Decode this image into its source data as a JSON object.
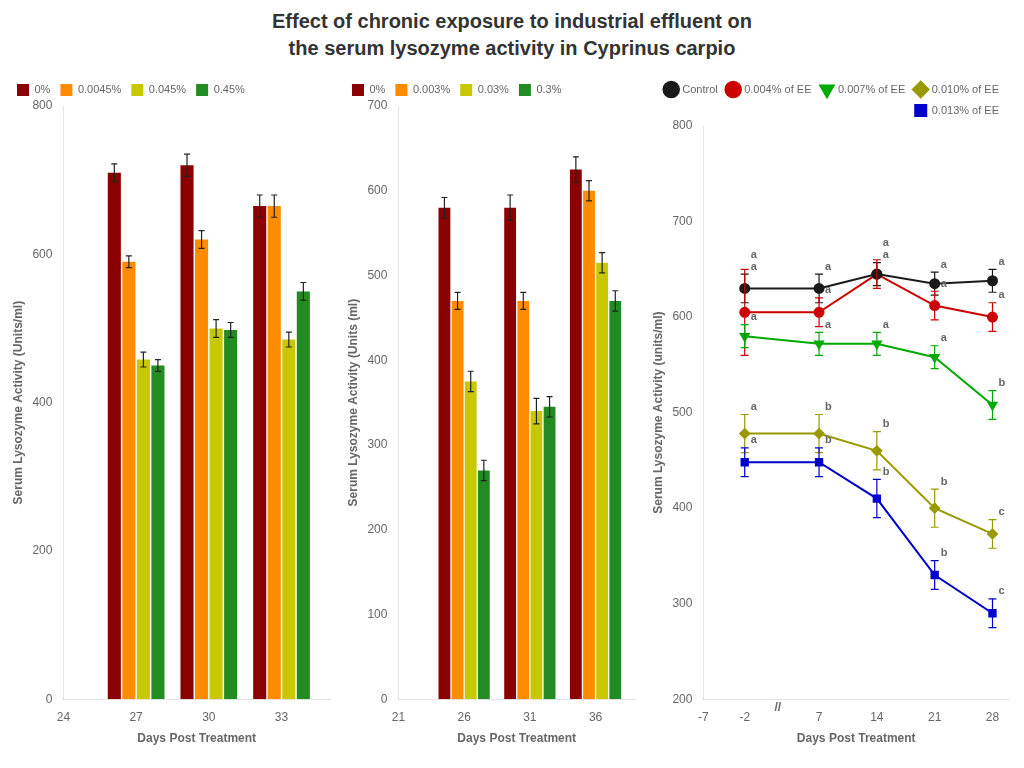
{
  "title": [
    "Effect of chronic exposure to industrial effluent on",
    "the serum lysozyme activity in Cyprinus carpio"
  ],
  "chart_data": [
    {
      "type": "bar",
      "x": [
        27,
        30,
        33
      ],
      "xlabel": "Days Post Treatment",
      "ylabel": "Serum Lysozyme Activity (Units/ml)",
      "xlim": [
        24,
        35
      ],
      "xticks": [
        24,
        27,
        30,
        33
      ],
      "ylim": [
        0,
        800
      ],
      "yticks": [
        0,
        200,
        400,
        600,
        800
      ],
      "grid": false,
      "legend": "upper left",
      "series": [
        {
          "name": "0%",
          "color": "#8B0000",
          "values": [
            710,
            720,
            665
          ],
          "errors": [
            12,
            15,
            15
          ]
        },
        {
          "name": "0.0045%",
          "color": "#FF8C00",
          "values": [
            590,
            620,
            665
          ],
          "errors": [
            8,
            12,
            15
          ]
        },
        {
          "name": "0.045%",
          "color": "#C8C800",
          "values": [
            458,
            500,
            485
          ],
          "errors": [
            10,
            12,
            10
          ]
        },
        {
          "name": "0.45%",
          "color": "#228B22",
          "values": [
            450,
            498,
            550
          ],
          "errors": [
            8,
            10,
            12
          ]
        }
      ]
    },
    {
      "type": "bar",
      "x": [
        26,
        31,
        36
      ],
      "xlabel": "Days Post Treatment",
      "ylabel": "Serum Lysozyme Activity (Units (ml)",
      "xlim": [
        21,
        39
      ],
      "xticks": [
        21,
        26,
        31,
        36
      ],
      "ylim": [
        0,
        700
      ],
      "yticks": [
        0,
        100,
        200,
        300,
        400,
        500,
        600,
        700
      ],
      "grid": false,
      "legend": "upper left",
      "series": [
        {
          "name": "0%",
          "color": "#8B0000",
          "values": [
            580,
            580,
            625
          ],
          "errors": [
            12,
            15,
            15
          ]
        },
        {
          "name": "0.003%",
          "color": "#FF8C00",
          "values": [
            470,
            470,
            600
          ],
          "errors": [
            10,
            10,
            12
          ]
        },
        {
          "name": "0.03%",
          "color": "#C8C800",
          "values": [
            375,
            340,
            515
          ],
          "errors": [
            12,
            15,
            12
          ]
        },
        {
          "name": "0.3%",
          "color": "#228B22",
          "values": [
            270,
            345,
            470
          ],
          "errors": [
            12,
            12,
            12
          ]
        }
      ]
    },
    {
      "type": "line",
      "x": [
        -2,
        7,
        14,
        21,
        28
      ],
      "xlabel": "Days Post Treatment",
      "ylabel": "Serum Lysozyme Activity (units/ml)",
      "xlim": [
        -7,
        30
      ],
      "xticks": [
        -7,
        -2,
        7,
        14,
        21,
        28
      ],
      "ylim": [
        200,
        800
      ],
      "yticks": [
        200,
        300,
        400,
        500,
        600,
        700,
        800
      ],
      "grid": false,
      "legend": "upper right",
      "annotations": [
        {
          "text": "//",
          "x": 2,
          "y": 200
        }
      ],
      "series": [
        {
          "name": "Control",
          "color": "#1a1a1a",
          "marker": "circle",
          "values": [
            630,
            630,
            645,
            635,
            638
          ],
          "errors": [
            15,
            15,
            12,
            12,
            12
          ],
          "annotations": [
            "a",
            "a",
            "a",
            "a",
            "a"
          ]
        },
        {
          "name": "0.004% of EE",
          "color": "#CC0000",
          "marker": "circle",
          "values": [
            605,
            605,
            645,
            612,
            600
          ],
          "errors": [
            45,
            15,
            15,
            15,
            15
          ],
          "annotations": [
            "a",
            "a",
            "a",
            "a",
            "a"
          ]
        },
        {
          "name": "0.007% of EE",
          "color": "#00AA00",
          "marker": "triangle_down",
          "values": [
            580,
            572,
            572,
            558,
            508
          ],
          "errors": [
            12,
            12,
            12,
            12,
            15
          ],
          "annotations": [
            "a",
            "a",
            "a",
            "a",
            "b"
          ]
        },
        {
          "name": "0.010% of EE",
          "color": "#999900",
          "marker": "diamond",
          "values": [
            478,
            478,
            460,
            400,
            373
          ],
          "errors": [
            20,
            20,
            20,
            20,
            15
          ],
          "annotations": [
            "a",
            "b",
            "b",
            "b",
            "c"
          ]
        },
        {
          "name": "0.013% of EE",
          "color": "#0000CC",
          "marker": "square",
          "values": [
            448,
            448,
            410,
            330,
            290
          ],
          "errors": [
            15,
            15,
            20,
            15,
            15
          ],
          "annotations": [
            "a",
            "b",
            "b",
            "b",
            "c"
          ]
        }
      ]
    }
  ]
}
